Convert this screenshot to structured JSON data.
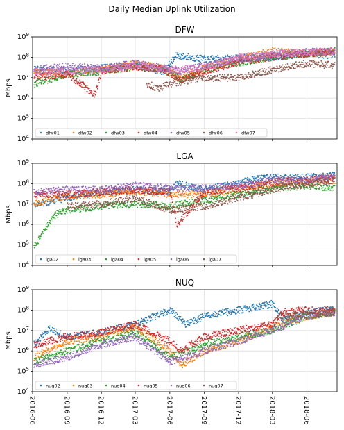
{
  "figure": {
    "title": "Daily Median Uplink Utilization"
  },
  "colors": [
    "#1f77b4",
    "#ff7f0e",
    "#2ca02c",
    "#d62728",
    "#9467bd",
    "#8c564b",
    "#e377c2"
  ],
  "chart_data": [
    {
      "type": "scatter",
      "title": "DFW",
      "ylabel": "Mbps",
      "yscale": "log",
      "ylim": [
        10000,
        1000000000
      ],
      "xlim": [
        "2016-06-01",
        "2018-08-20"
      ],
      "x_ticks": [
        "2016-06",
        "2016-09",
        "2016-12",
        "2017-03",
        "2017-06",
        "2017-09",
        "2017-12",
        "2018-03",
        "2018-06"
      ],
      "y_ticks": [
        "10^4",
        "10^5",
        "10^6",
        "10^7",
        "10^8",
        "10^9"
      ],
      "grid": true,
      "legend": "bottom-left",
      "series": [
        {
          "name": "dfw01",
          "points": [
            [
              "2016-06-05",
              25000000
            ],
            [
              "2016-09-01",
              20000000
            ],
            [
              "2016-12-01",
              30000000
            ],
            [
              "2017-03-01",
              40000000
            ],
            [
              "2017-05-15",
              20000000
            ],
            [
              "2017-06-20",
              120000000
            ],
            [
              "2017-09-01",
              80000000
            ],
            [
              "2017-12-01",
              90000000
            ],
            [
              "2018-03-01",
              100000000
            ],
            [
              "2018-06-01",
              150000000
            ],
            [
              "2018-08-15",
              120000000
            ]
          ]
        },
        {
          "name": "dfw02",
          "points": [
            [
              "2016-06-05",
              20000000
            ],
            [
              "2016-09-01",
              15000000
            ],
            [
              "2016-12-01",
              25000000
            ],
            [
              "2017-03-01",
              45000000
            ],
            [
              "2017-05-15",
              30000000
            ],
            [
              "2017-07-01",
              10000000
            ],
            [
              "2017-09-01",
              30000000
            ],
            [
              "2017-12-01",
              80000000
            ],
            [
              "2018-03-01",
              200000000
            ],
            [
              "2018-06-01",
              150000000
            ],
            [
              "2018-08-15",
              200000000
            ]
          ]
        },
        {
          "name": "dfw03",
          "points": [
            [
              "2016-06-05",
              5000000
            ],
            [
              "2016-09-01",
              15000000
            ],
            [
              "2016-12-01",
              20000000
            ],
            [
              "2017-03-01",
              35000000
            ],
            [
              "2017-05-15",
              25000000
            ],
            [
              "2017-07-01",
              8000000
            ],
            [
              "2017-09-01",
              25000000
            ],
            [
              "2017-12-01",
              50000000
            ],
            [
              "2018-03-01",
              100000000
            ],
            [
              "2018-06-01",
              150000000
            ],
            [
              "2018-08-15",
              200000000
            ]
          ]
        },
        {
          "name": "dfw04",
          "points": [
            [
              "2016-06-05",
              10000000
            ],
            [
              "2016-09-01",
              15000000
            ],
            [
              "2016-11-15",
              1500000
            ],
            [
              "2016-12-01",
              20000000
            ],
            [
              "2017-03-01",
              35000000
            ],
            [
              "2017-05-15",
              25000000
            ],
            [
              "2017-07-01",
              8000000
            ],
            [
              "2017-09-01",
              20000000
            ],
            [
              "2017-12-01",
              60000000
            ],
            [
              "2018-03-01",
              100000000
            ],
            [
              "2018-06-01",
              150000000
            ],
            [
              "2018-08-15",
              200000000
            ]
          ]
        },
        {
          "name": "dfw05",
          "points": [
            [
              "2016-06-05",
              25000000
            ],
            [
              "2016-09-01",
              35000000
            ],
            [
              "2016-12-01",
              30000000
            ],
            [
              "2017-03-01",
              50000000
            ],
            [
              "2017-05-15",
              30000000
            ],
            [
              "2017-07-01",
              20000000
            ],
            [
              "2017-09-01",
              40000000
            ],
            [
              "2017-12-01",
              80000000
            ],
            [
              "2018-03-01",
              120000000
            ],
            [
              "2018-06-01",
              180000000
            ],
            [
              "2018-08-15",
              200000000
            ]
          ]
        },
        {
          "name": "dfw06",
          "points": [
            [
              "2017-04-01",
              5000000
            ],
            [
              "2017-05-01",
              3000000
            ],
            [
              "2017-06-01",
              5000000
            ],
            [
              "2017-09-01",
              10000000
            ],
            [
              "2017-12-01",
              10000000
            ],
            [
              "2018-03-01",
              25000000
            ],
            [
              "2018-06-01",
              50000000
            ],
            [
              "2018-08-15",
              40000000
            ]
          ]
        },
        {
          "name": "dfw07",
          "points": [
            [
              "2016-06-05",
              20000000
            ],
            [
              "2016-09-01",
              20000000
            ],
            [
              "2016-12-01",
              25000000
            ],
            [
              "2017-03-01",
              40000000
            ],
            [
              "2017-06-01",
              25000000
            ],
            [
              "2017-09-01",
              30000000
            ],
            [
              "2017-12-01",
              100000000
            ],
            [
              "2018-03-01",
              150000000
            ],
            [
              "2018-06-01",
              180000000
            ],
            [
              "2018-08-15",
              200000000
            ]
          ]
        }
      ]
    },
    {
      "type": "scatter",
      "title": "LGA",
      "ylabel": "Mbps",
      "yscale": "log",
      "ylim": [
        10000,
        1000000000
      ],
      "xlim": [
        "2016-06-01",
        "2018-08-20"
      ],
      "x_ticks": [
        "2016-06",
        "2016-09",
        "2016-12",
        "2017-03",
        "2017-06",
        "2017-09",
        "2017-12",
        "2018-03",
        "2018-06"
      ],
      "y_ticks": [
        "10^4",
        "10^5",
        "10^6",
        "10^7",
        "10^8",
        "10^9"
      ],
      "grid": true,
      "legend": "bottom-left",
      "series": [
        {
          "name": "lga02",
          "points": [
            [
              "2016-06-05",
              10000000
            ],
            [
              "2016-09-01",
              20000000
            ],
            [
              "2016-12-01",
              40000000
            ],
            [
              "2017-03-01",
              50000000
            ],
            [
              "2017-06-01",
              40000000
            ],
            [
              "2017-06-20",
              100000000
            ],
            [
              "2017-09-01",
              50000000
            ],
            [
              "2017-12-01",
              100000000
            ],
            [
              "2018-01-01",
              150000000
            ],
            [
              "2018-03-01",
              200000000
            ],
            [
              "2018-06-01",
              200000000
            ],
            [
              "2018-08-15",
              250000000
            ]
          ]
        },
        {
          "name": "lga03",
          "points": [
            [
              "2016-06-05",
              10000000
            ],
            [
              "2016-09-01",
              25000000
            ],
            [
              "2016-12-01",
              30000000
            ],
            [
              "2017-03-01",
              40000000
            ],
            [
              "2017-06-01",
              30000000
            ],
            [
              "2017-09-01",
              30000000
            ],
            [
              "2017-12-01",
              50000000
            ],
            [
              "2018-03-01",
              100000000
            ],
            [
              "2018-06-01",
              120000000
            ],
            [
              "2018-08-15",
              150000000
            ]
          ]
        },
        {
          "name": "lga04",
          "points": [
            [
              "2016-06-05",
              80000
            ],
            [
              "2016-07-01",
              500000
            ],
            [
              "2016-08-01",
              3000000
            ],
            [
              "2016-09-01",
              5000000
            ],
            [
              "2016-12-01",
              8000000
            ],
            [
              "2017-03-01",
              10000000
            ],
            [
              "2017-06-01",
              8000000
            ],
            [
              "2017-09-01",
              15000000
            ],
            [
              "2017-12-01",
              30000000
            ],
            [
              "2018-03-01",
              60000000
            ],
            [
              "2018-06-01",
              80000000
            ],
            [
              "2018-08-15",
              60000000
            ]
          ]
        },
        {
          "name": "lga05",
          "points": [
            [
              "2016-06-05",
              30000000
            ],
            [
              "2016-09-01",
              30000000
            ],
            [
              "2016-12-01",
              40000000
            ],
            [
              "2017-03-01",
              50000000
            ],
            [
              "2017-06-01",
              40000000
            ],
            [
              "2017-06-20",
              1000000
            ],
            [
              "2017-09-01",
              40000000
            ],
            [
              "2017-12-01",
              60000000
            ],
            [
              "2018-03-01",
              120000000
            ],
            [
              "2018-06-01",
              150000000
            ],
            [
              "2018-08-15",
              200000000
            ]
          ]
        },
        {
          "name": "lga06",
          "points": [
            [
              "2016-06-05",
              40000000
            ],
            [
              "2016-09-01",
              50000000
            ],
            [
              "2016-12-01",
              50000000
            ],
            [
              "2017-03-01",
              80000000
            ],
            [
              "2017-06-01",
              60000000
            ],
            [
              "2017-09-01",
              60000000
            ],
            [
              "2017-12-01",
              80000000
            ],
            [
              "2018-03-01",
              150000000
            ],
            [
              "2018-06-01",
              150000000
            ],
            [
              "2018-08-15",
              250000000
            ]
          ]
        },
        {
          "name": "lga07",
          "points": [
            [
              "2016-09-01",
              8000000
            ],
            [
              "2016-12-01",
              10000000
            ],
            [
              "2017-03-01",
              20000000
            ],
            [
              "2017-06-01",
              5000000
            ],
            [
              "2017-09-01",
              8000000
            ],
            [
              "2017-12-01",
              20000000
            ],
            [
              "2018-03-01",
              50000000
            ],
            [
              "2018-06-01",
              100000000
            ],
            [
              "2018-08-15",
              150000000
            ]
          ]
        }
      ]
    },
    {
      "type": "scatter",
      "title": "NUQ",
      "ylabel": "Mbps",
      "yscale": "log",
      "ylim": [
        10000,
        1000000000
      ],
      "xlim": [
        "2016-06-01",
        "2018-08-20"
      ],
      "x_ticks": [
        "2016-06",
        "2016-09",
        "2016-12",
        "2017-03",
        "2017-06",
        "2017-09",
        "2017-12",
        "2018-03",
        "2018-06"
      ],
      "y_ticks": [
        "10^4",
        "10^5",
        "10^6",
        "10^7",
        "10^8",
        "10^9"
      ],
      "grid": true,
      "legend": "bottom-left",
      "series": [
        {
          "name": "nuq02",
          "points": [
            [
              "2016-06-05",
              2000000
            ],
            [
              "2016-07-15",
              12000000
            ],
            [
              "2016-09-01",
              5000000
            ],
            [
              "2016-12-01",
              8000000
            ],
            [
              "2017-03-01",
              20000000
            ],
            [
              "2017-06-01",
              100000000
            ],
            [
              "2017-07-15",
              20000000
            ],
            [
              "2017-09-01",
              50000000
            ],
            [
              "2017-12-01",
              100000000
            ],
            [
              "2018-03-01",
              200000000
            ],
            [
              "2018-04-01",
              30000000
            ],
            [
              "2018-06-01",
              80000000
            ],
            [
              "2018-08-15",
              100000000
            ]
          ]
        },
        {
          "name": "nuq03",
          "points": [
            [
              "2016-06-05",
              500000
            ],
            [
              "2016-09-01",
              3000000
            ],
            [
              "2016-12-01",
              5000000
            ],
            [
              "2017-03-01",
              15000000
            ],
            [
              "2017-06-01",
              1000000
            ],
            [
              "2017-07-01",
              200000
            ],
            [
              "2017-09-01",
              1000000
            ],
            [
              "2017-12-01",
              3000000
            ],
            [
              "2018-03-01",
              15000000
            ],
            [
              "2018-06-01",
              50000000
            ],
            [
              "2018-08-15",
              80000000
            ]
          ]
        },
        {
          "name": "nuq04",
          "points": [
            [
              "2016-06-05",
              300000
            ],
            [
              "2016-09-01",
              1000000
            ],
            [
              "2016-12-01",
              3000000
            ],
            [
              "2017-03-01",
              8000000
            ],
            [
              "2017-06-01",
              500000
            ],
            [
              "2017-09-01",
              2000000
            ],
            [
              "2017-12-01",
              5000000
            ],
            [
              "2018-03-01",
              10000000
            ],
            [
              "2018-06-01",
              50000000
            ],
            [
              "2018-08-15",
              80000000
            ]
          ]
        },
        {
          "name": "nuq05",
          "points": [
            [
              "2016-06-05",
              2000000
            ],
            [
              "2016-09-01",
              5000000
            ],
            [
              "2016-12-01",
              8000000
            ],
            [
              "2017-03-01",
              20000000
            ],
            [
              "2017-06-01",
              3000000
            ],
            [
              "2017-07-01",
              1000000
            ],
            [
              "2017-09-01",
              5000000
            ],
            [
              "2017-12-01",
              10000000
            ],
            [
              "2018-03-01",
              20000000
            ],
            [
              "2018-04-01",
              80000000
            ],
            [
              "2018-06-01",
              100000000
            ],
            [
              "2018-08-15",
              100000000
            ]
          ]
        },
        {
          "name": "nuq06",
          "points": [
            [
              "2016-06-05",
              200000
            ],
            [
              "2016-09-01",
              500000
            ],
            [
              "2016-12-01",
              2000000
            ],
            [
              "2017-03-01",
              5000000
            ],
            [
              "2017-06-01",
              300000
            ],
            [
              "2017-09-01",
              1000000
            ],
            [
              "2017-12-01",
              3000000
            ],
            [
              "2018-03-01",
              10000000
            ],
            [
              "2018-06-01",
              50000000
            ],
            [
              "2018-08-15",
              80000000
            ]
          ]
        },
        {
          "name": "nuq07",
          "points": [
            [
              "2018-03-15",
              50000000
            ],
            [
              "2018-06-01",
              60000000
            ],
            [
              "2018-08-15",
              80000000
            ]
          ]
        }
      ]
    }
  ]
}
